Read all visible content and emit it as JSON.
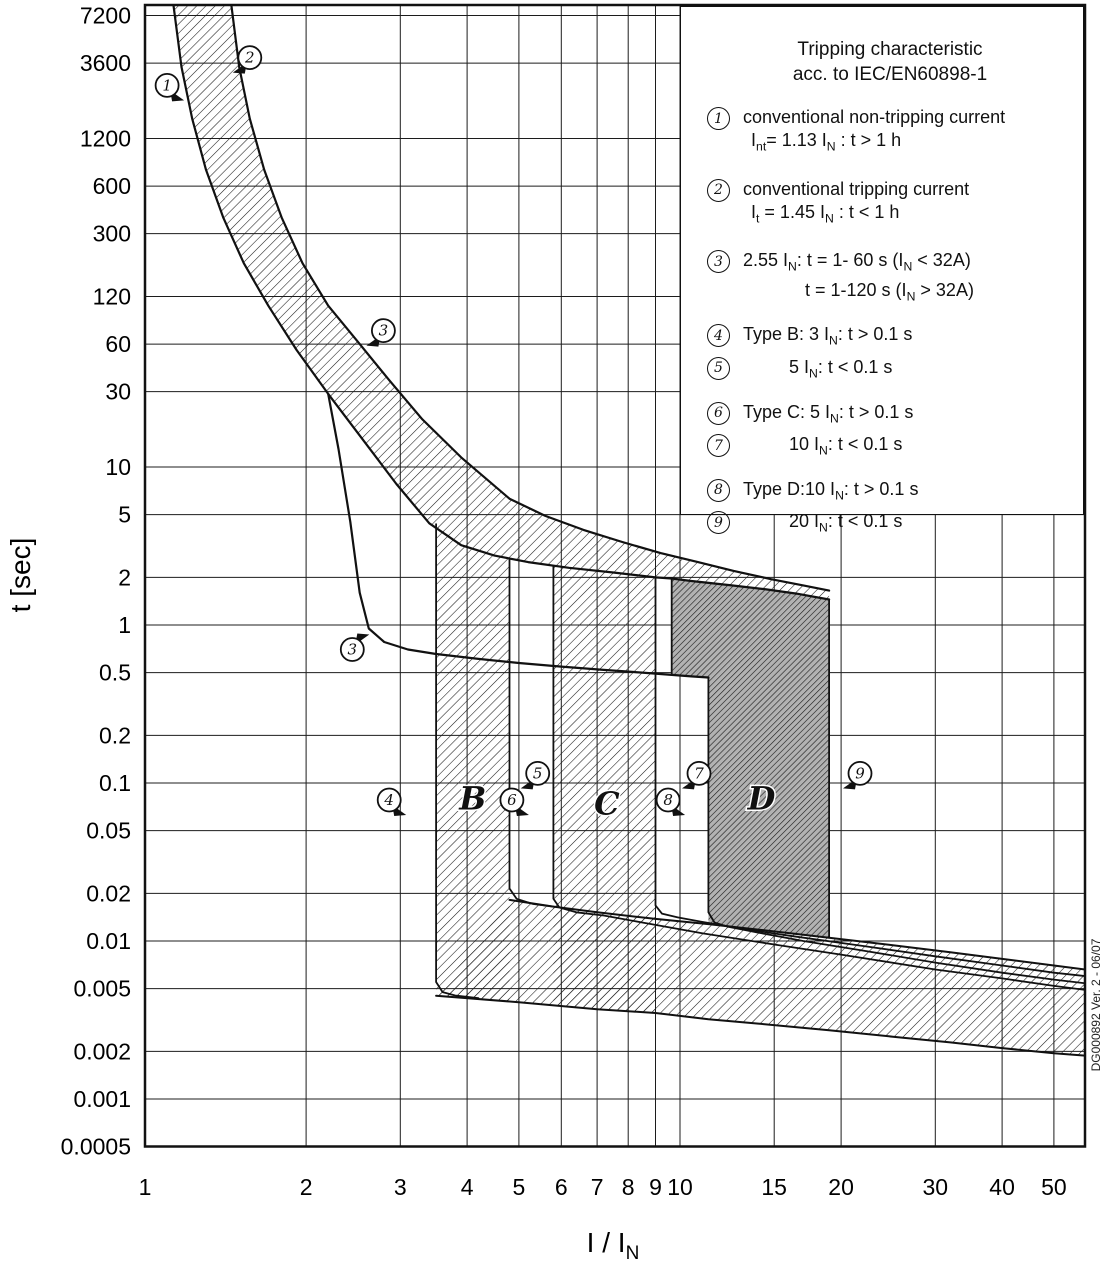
{
  "chart_data": {
    "type": "area",
    "title": "Tripping characteristic acc. to IEC/EN60898-1",
    "xlabel": "I / I_N",
    "ylabel": "t [sec]",
    "x_range": [
      1,
      57.2
    ],
    "y_range": [
      0.00045,
      8430
    ],
    "grid": true,
    "legend_position": "top-right",
    "watermark": "DG000892 Ver. 2 - 06/07",
    "x_ticks": [
      1,
      2,
      3,
      4,
      5,
      6,
      7,
      8,
      9,
      10,
      15,
      20,
      30,
      40,
      50
    ],
    "y_ticks": [
      7200,
      3600,
      1200,
      600,
      300,
      120,
      60,
      30,
      10,
      5,
      2,
      1,
      0.5,
      0.2,
      0.1,
      0.05,
      0.02,
      0.01,
      0.005,
      0.002,
      0.001,
      0.0005
    ],
    "legend": {
      "title_lines": [
        "Tripping characteristic",
        "acc. to IEC/EN60898-1"
      ],
      "items": [
        {
          "num": "1",
          "lines": [
            "conventional non-tripping current",
            "I_nt= 1.13 I_N : t > 1 h"
          ],
          "indent": 0
        },
        {
          "num": "2",
          "lines": [
            "conventional tripping current",
            "I_t = 1.45 I_N : t < 1 h"
          ],
          "indent": 0
        },
        {
          "num": "3",
          "lines": [
            "2.55 I_N: t = 1- 60 s (I_N < 32A)",
            "t = 1-120 s (I_N > 32A)"
          ],
          "indent": 0
        },
        {
          "num": "4",
          "lines": [
            "Type B: 3 I_N: t > 0.1 s"
          ],
          "indent": 0
        },
        {
          "num": "5",
          "lines": [
            "5 I_N: t < 0.1 s"
          ],
          "indent": 1
        },
        {
          "num": "6",
          "lines": [
            "Type C: 5 I_N: t > 0.1 s"
          ],
          "indent": 0
        },
        {
          "num": "7",
          "lines": [
            "10 I_N: t < 0.1 s"
          ],
          "indent": 1
        },
        {
          "num": "8",
          "lines": [
            "Type D:10 I_N: t > 0.1 s"
          ],
          "indent": 0
        },
        {
          "num": "9",
          "lines": [
            "20 I_N: t < 0.1 s"
          ],
          "indent": 1
        }
      ]
    },
    "regions": [
      {
        "name": "thermal-band",
        "fill": "hatch",
        "points": [
          [
            1.45,
            8430
          ],
          [
            1.5,
            3400
          ],
          [
            1.57,
            1600
          ],
          [
            1.67,
            760
          ],
          [
            1.8,
            380
          ],
          [
            1.97,
            195
          ],
          [
            2.2,
            105
          ],
          [
            2.5,
            62
          ],
          [
            2.85,
            36
          ],
          [
            3.3,
            20
          ],
          [
            3.9,
            11.5
          ],
          [
            4.8,
            6.3
          ],
          [
            5.6,
            4.9
          ],
          [
            6.6,
            4.0
          ],
          [
            7.8,
            3.35
          ],
          [
            9.2,
            2.85
          ],
          [
            10.8,
            2.5
          ],
          [
            12.6,
            2.2
          ],
          [
            14.8,
            1.95
          ],
          [
            17,
            1.78
          ],
          [
            19,
            1.65
          ],
          [
            19,
            1.45
          ],
          [
            16.5,
            1.58
          ],
          [
            14.5,
            1.68
          ],
          [
            12.5,
            1.78
          ],
          [
            10.5,
            1.9
          ],
          [
            9.65,
            1.97
          ],
          [
            9,
            2.0
          ],
          [
            7.5,
            2.15
          ],
          [
            6.2,
            2.3
          ],
          [
            5.2,
            2.5
          ],
          [
            4.5,
            2.75
          ],
          [
            3.9,
            3.2
          ],
          [
            3.4,
            4.4
          ],
          [
            2.95,
            7.8
          ],
          [
            2.55,
            15
          ],
          [
            2.2,
            29
          ],
          [
            1.92,
            55
          ],
          [
            1.7,
            105
          ],
          [
            1.53,
            195
          ],
          [
            1.4,
            380
          ],
          [
            1.3,
            760
          ],
          [
            1.225,
            1600
          ],
          [
            1.17,
            3400
          ],
          [
            1.13,
            8430
          ]
        ]
      },
      {
        "name": "type-b-band",
        "fill": "hatch",
        "points": [
          [
            3.5,
            4.35
          ],
          [
            3.9,
            3.2
          ],
          [
            4.5,
            2.75
          ],
          [
            4.8,
            2.62
          ],
          [
            4.8,
            0.00414
          ],
          [
            3.5,
            0.0045
          ]
        ]
      },
      {
        "name": "type-c-band",
        "fill": "hatch",
        "points": [
          [
            5.8,
            2.37
          ],
          [
            6.2,
            2.3
          ],
          [
            7.5,
            2.15
          ],
          [
            9.0,
            2.0
          ],
          [
            9.0,
            0.0035
          ],
          [
            5.8,
            0.00395
          ]
        ]
      },
      {
        "name": "bottom-band",
        "fill": "hatch",
        "points": [
          [
            4.8,
            0.0182
          ],
          [
            5.8,
            0.0165
          ],
          [
            7,
            0.0152
          ],
          [
            9,
            0.0138
          ],
          [
            11.3,
            0.0128
          ],
          [
            14,
            0.0118
          ],
          [
            19,
            0.0105
          ],
          [
            25,
            0.0094
          ],
          [
            32,
            0.0085
          ],
          [
            40,
            0.0077
          ],
          [
            50,
            0.007
          ],
          [
            57.2,
            0.0066
          ],
          [
            57.2,
            0.00188
          ],
          [
            50,
            0.00195
          ],
          [
            40,
            0.0021
          ],
          [
            32,
            0.00228
          ],
          [
            25,
            0.00248
          ],
          [
            19,
            0.00272
          ],
          [
            14,
            0.003
          ],
          [
            11.3,
            0.0032
          ],
          [
            9,
            0.0035
          ],
          [
            7,
            0.0037
          ],
          [
            5,
            0.0041
          ],
          [
            3.5,
            0.0045
          ]
        ]
      },
      {
        "name": "type-d-band",
        "fill": "dense",
        "points": [
          [
            9.65,
            1.97
          ],
          [
            10.5,
            1.9
          ],
          [
            12.5,
            1.78
          ],
          [
            14.5,
            1.68
          ],
          [
            16.5,
            1.58
          ],
          [
            19,
            1.45
          ],
          [
            19,
            0.0105
          ],
          [
            14,
            0.0118
          ],
          [
            11.3,
            0.0128
          ],
          [
            11.3,
            0.465
          ],
          [
            10.5,
            0.473
          ],
          [
            9.65,
            0.483
          ]
        ]
      }
    ],
    "lines": [
      {
        "name": "upper-limit-curve",
        "w": 2.2,
        "points": [
          [
            1.45,
            8430
          ],
          [
            1.5,
            3400
          ],
          [
            1.57,
            1600
          ],
          [
            1.67,
            760
          ],
          [
            1.8,
            380
          ],
          [
            1.97,
            195
          ],
          [
            2.2,
            105
          ],
          [
            2.5,
            62
          ],
          [
            2.85,
            36
          ],
          [
            3.3,
            20
          ],
          [
            3.9,
            11.5
          ],
          [
            4.8,
            6.3
          ],
          [
            5.6,
            4.9
          ],
          [
            6.6,
            4.0
          ],
          [
            7.8,
            3.35
          ],
          [
            9.2,
            2.85
          ],
          [
            10.8,
            2.5
          ],
          [
            12.6,
            2.2
          ],
          [
            14.8,
            1.95
          ],
          [
            17,
            1.78
          ],
          [
            19,
            1.65
          ]
        ]
      },
      {
        "name": "band-lower-curve",
        "w": 2.2,
        "points": [
          [
            1.13,
            8430
          ],
          [
            1.17,
            3400
          ],
          [
            1.225,
            1600
          ],
          [
            1.3,
            760
          ],
          [
            1.4,
            380
          ],
          [
            1.53,
            195
          ],
          [
            1.7,
            105
          ],
          [
            1.92,
            55
          ],
          [
            2.2,
            29
          ],
          [
            2.55,
            15
          ],
          [
            2.95,
            7.8
          ],
          [
            3.4,
            4.4
          ],
          [
            3.9,
            3.2
          ],
          [
            4.5,
            2.75
          ],
          [
            5.2,
            2.5
          ],
          [
            6.2,
            2.3
          ],
          [
            7.5,
            2.15
          ],
          [
            9,
            2.0
          ],
          [
            9.65,
            1.97
          ],
          [
            10.5,
            1.9
          ],
          [
            12.5,
            1.78
          ],
          [
            14.5,
            1.68
          ],
          [
            16.5,
            1.58
          ],
          [
            19,
            1.45
          ]
        ]
      },
      {
        "name": "lower-limit-curve",
        "w": 2.2,
        "points": [
          [
            2.2,
            29
          ],
          [
            2.3,
            13
          ],
          [
            2.42,
            4.5
          ],
          [
            2.52,
            1.6
          ],
          [
            2.62,
            0.95
          ],
          [
            2.8,
            0.78
          ],
          [
            3.1,
            0.7
          ],
          [
            3.5,
            0.655
          ],
          [
            4.2,
            0.61
          ],
          [
            5,
            0.575
          ],
          [
            6,
            0.545
          ],
          [
            7.2,
            0.52
          ],
          [
            8.5,
            0.5
          ],
          [
            9.65,
            0.483
          ],
          [
            10.5,
            0.473
          ],
          [
            11.3,
            0.465
          ]
        ]
      },
      {
        "name": "bottom-band-top",
        "w": 2,
        "points": [
          [
            4.8,
            0.0182
          ],
          [
            5.8,
            0.0165
          ],
          [
            7,
            0.0152
          ],
          [
            9,
            0.0138
          ],
          [
            11.3,
            0.0128
          ],
          [
            14,
            0.0118
          ],
          [
            19,
            0.0105
          ],
          [
            25,
            0.0094
          ],
          [
            32,
            0.0085
          ],
          [
            40,
            0.0077
          ],
          [
            50,
            0.007
          ],
          [
            57.2,
            0.0066
          ]
        ]
      },
      {
        "name": "bottom-band-bottom",
        "w": 2,
        "points": [
          [
            3.5,
            0.0045
          ],
          [
            5,
            0.0041
          ],
          [
            7,
            0.0037
          ],
          [
            9,
            0.0035
          ],
          [
            11.3,
            0.0032
          ],
          [
            14,
            0.003
          ],
          [
            19,
            0.00272
          ],
          [
            25,
            0.00248
          ],
          [
            32,
            0.00228
          ],
          [
            40,
            0.0021
          ],
          [
            50,
            0.00195
          ],
          [
            57.2,
            0.00188
          ]
        ]
      },
      {
        "name": "b-lower-limit-3in",
        "w": 1.8,
        "points": [
          [
            3.5,
            4.35
          ],
          [
            3.5,
            0.0055
          ],
          [
            3.6,
            0.00475
          ],
          [
            3.8,
            0.00452
          ],
          [
            4.2,
            0.00435
          ]
        ]
      },
      {
        "name": "b-upper-limit-5in",
        "w": 1.8,
        "points": [
          [
            4.8,
            2.62
          ],
          [
            4.8,
            0.0215
          ],
          [
            4.95,
            0.0185
          ],
          [
            5.3,
            0.0172
          ],
          [
            5.8,
            0.0165
          ]
        ]
      },
      {
        "name": "c-lower-limit-5in",
        "w": 1.8,
        "points": [
          [
            5.8,
            2.37
          ],
          [
            5.8,
            0.0185
          ],
          [
            5.95,
            0.0163
          ],
          [
            6.4,
            0.0152
          ],
          [
            7.2,
            0.0145
          ],
          [
            8.5,
            0.0131
          ],
          [
            11,
            0.0112
          ],
          [
            15,
            0.0095
          ],
          [
            20,
            0.0082
          ],
          [
            30,
            0.0066
          ],
          [
            40,
            0.0058
          ],
          [
            50,
            0.0052
          ],
          [
            57.2,
            0.0049
          ]
        ]
      },
      {
        "name": "c-upper-limit-10in",
        "w": 1.8,
        "points": [
          [
            9.0,
            2.0
          ],
          [
            9.0,
            0.0168
          ],
          [
            9.25,
            0.0149
          ],
          [
            9.9,
            0.0141
          ],
          [
            11,
            0.0132
          ],
          [
            13,
            0.012
          ],
          [
            16,
            0.0108
          ],
          [
            22,
            0.0093
          ],
          [
            30,
            0.008
          ],
          [
            40,
            0.007
          ],
          [
            50,
            0.0063
          ],
          [
            57.2,
            0.006
          ]
        ]
      },
      {
        "name": "d-band-left-edge",
        "w": 1.8,
        "points": [
          [
            9.65,
            1.97
          ],
          [
            9.65,
            0.483
          ]
        ]
      },
      {
        "name": "d-lower-limit-10in",
        "w": 1.8,
        "points": [
          [
            11.3,
            0.465
          ],
          [
            11.3,
            0.0152
          ],
          [
            11.6,
            0.0131
          ],
          [
            12.3,
            0.0123
          ],
          [
            14,
            0.0113
          ],
          [
            17,
            0.01
          ],
          [
            22,
            0.0087
          ],
          [
            30,
            0.0073
          ],
          [
            40,
            0.0063
          ],
          [
            50,
            0.0057
          ],
          [
            57.2,
            0.0054
          ]
        ]
      },
      {
        "name": "d-upper-limit-20in",
        "w": 1.8,
        "points": [
          [
            19,
            1.45
          ],
          [
            19,
            0.0105
          ]
        ]
      }
    ],
    "flags": [
      {
        "num": "1",
        "x": 1.1,
        "t": 2600,
        "wedge": "br"
      },
      {
        "num": "2",
        "x": 1.57,
        "t": 3900,
        "wedge": "bl"
      },
      {
        "num": "3",
        "x": 2.79,
        "t": 73,
        "wedge": "bl"
      },
      {
        "num": "3",
        "x": 2.44,
        "t": 0.7,
        "wedge": "tr"
      },
      {
        "num": "4",
        "x": 2.86,
        "t": 0.078,
        "wedge": "br"
      },
      {
        "num": "5",
        "x": 5.42,
        "t": 0.115,
        "wedge": "bl"
      },
      {
        "num": "6",
        "x": 4.85,
        "t": 0.078,
        "wedge": "br"
      },
      {
        "num": "7",
        "x": 10.85,
        "t": 0.115,
        "wedge": "bl"
      },
      {
        "num": "8",
        "x": 9.5,
        "t": 0.078,
        "wedge": "br"
      },
      {
        "num": "9",
        "x": 21.7,
        "t": 0.115,
        "wedge": "bl"
      }
    ],
    "region_labels": [
      {
        "label": "B",
        "x": 4.1,
        "t": 0.068
      },
      {
        "label": "C",
        "x": 7.3,
        "t": 0.063
      },
      {
        "label": "D",
        "x": 14.2,
        "t": 0.068
      }
    ]
  }
}
